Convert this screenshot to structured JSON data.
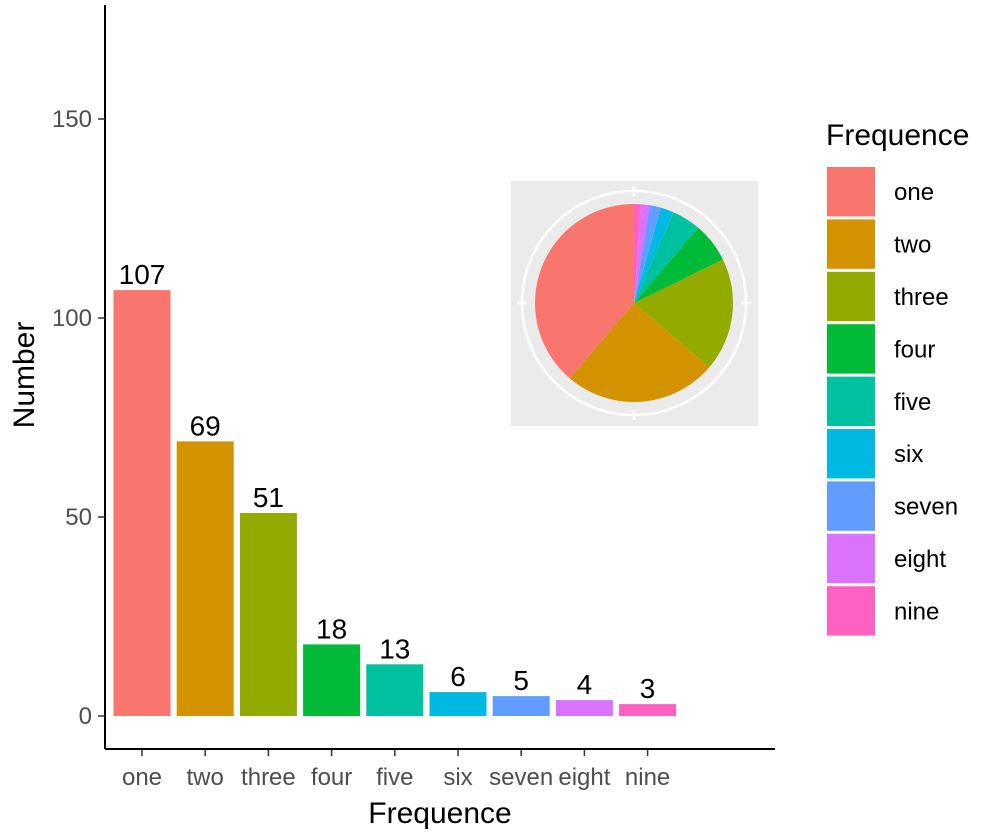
{
  "chart_data": [
    {
      "type": "bar",
      "title": "",
      "xlabel": "Frequence",
      "ylabel": "Number",
      "categories": [
        "one",
        "two",
        "three",
        "four",
        "five",
        "six",
        "seven",
        "eight",
        "nine"
      ],
      "values": [
        107,
        69,
        51,
        18,
        13,
        6,
        5,
        4,
        3
      ],
      "data_labels": [
        "107",
        "69",
        "51",
        "18",
        "13",
        "6",
        "5",
        "4",
        "3"
      ],
      "ylim": [
        0,
        175
      ],
      "yticks": [
        0,
        50,
        100,
        150
      ],
      "ytick_labels": [
        "0",
        "50",
        "100",
        "150"
      ],
      "colors": [
        "#F8766D",
        "#D39200",
        "#93AA00",
        "#00BA38",
        "#00C19F",
        "#00B9E3",
        "#619CFF",
        "#DB72FB",
        "#FF61C3"
      ],
      "grid": false,
      "legend": {
        "title": "Frequence",
        "position": "right",
        "entries": [
          "one",
          "two",
          "three",
          "four",
          "five",
          "six",
          "seven",
          "eight",
          "nine"
        ]
      }
    },
    {
      "type": "pie",
      "title": "",
      "categories": [
        "one",
        "two",
        "three",
        "four",
        "five",
        "six",
        "seven",
        "eight",
        "nine"
      ],
      "values": [
        107,
        69,
        51,
        18,
        13,
        6,
        5,
        4,
        3
      ],
      "colors": [
        "#F8766D",
        "#D39200",
        "#93AA00",
        "#00BA38",
        "#00C19F",
        "#00B9E3",
        "#619CFF",
        "#DB72FB",
        "#FF61C3"
      ],
      "panel_background": "#EBEBEB",
      "placement": "inset top-right of bar chart"
    }
  ]
}
